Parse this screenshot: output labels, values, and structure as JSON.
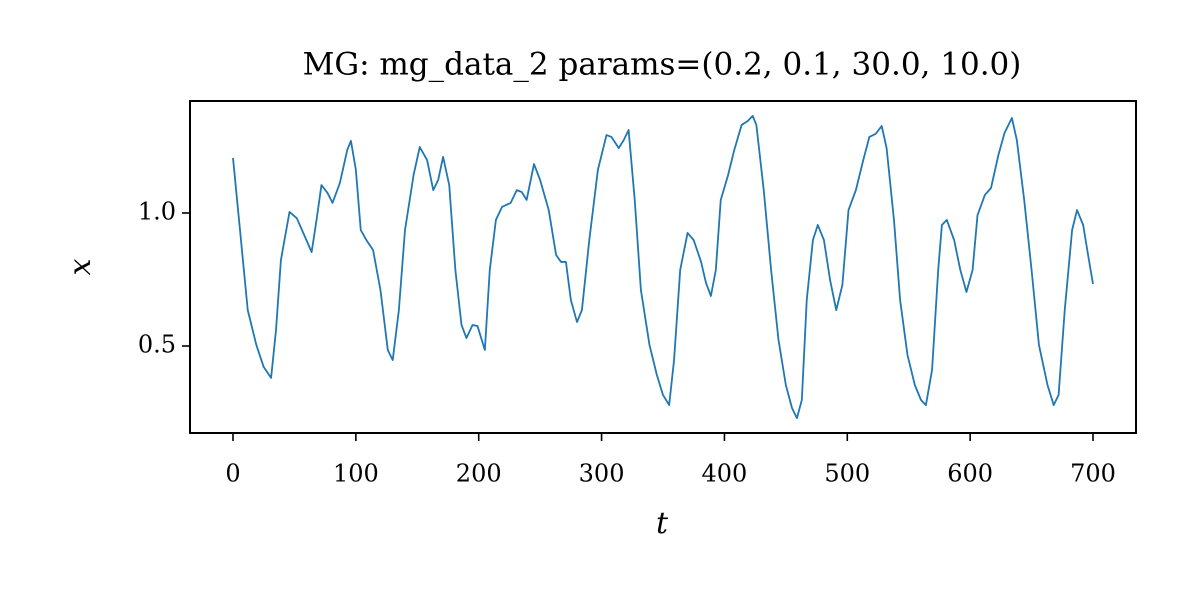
{
  "chart_data": {
    "type": "line",
    "title": "MG: mg_data_2 params=(0.2, 0.1, 30.0, 10.0)",
    "x_label": "t",
    "y_label": "x",
    "color": "#1f77b4",
    "grid": false,
    "x": [
      0,
      5.7,
      12,
      19,
      25,
      31,
      35,
      39,
      46,
      52,
      59,
      64,
      68,
      72,
      77,
      81,
      87,
      93,
      96,
      100,
      104,
      109,
      114,
      120,
      126,
      130,
      135,
      140,
      147,
      152,
      158,
      163,
      167,
      171,
      176,
      181,
      186,
      190,
      195,
      199,
      205,
      209,
      214,
      219,
      226,
      231,
      235,
      239,
      245,
      250,
      257,
      263,
      267,
      271,
      275,
      280,
      284,
      290,
      297,
      304,
      308,
      314,
      318,
      322,
      327,
      332,
      339,
      345,
      350,
      355,
      359,
      364,
      370,
      375,
      381,
      385,
      389,
      393,
      397,
      403,
      408,
      414,
      419,
      423,
      426,
      432,
      438,
      444,
      450,
      455,
      459,
      463,
      467,
      472,
      476,
      481,
      486,
      491,
      496,
      501,
      507,
      513,
      518,
      523,
      528,
      532,
      538,
      543,
      549,
      555,
      560,
      564,
      569,
      574,
      577,
      581,
      587,
      592,
      597,
      602,
      606,
      612,
      617,
      623,
      628,
      634,
      638,
      644,
      650,
      656,
      663,
      668,
      672,
      677,
      683,
      687,
      692,
      696,
      700
    ],
    "values": [
      1.207,
      0.936,
      0.635,
      0.504,
      0.421,
      0.38,
      0.56,
      0.823,
      1.004,
      0.98,
      0.906,
      0.853,
      0.974,
      1.105,
      1.075,
      1.038,
      1.113,
      1.237,
      1.271,
      1.162,
      0.936,
      0.895,
      0.861,
      0.711,
      0.485,
      0.447,
      0.635,
      0.936,
      1.143,
      1.248,
      1.199,
      1.086,
      1.124,
      1.211,
      1.105,
      0.786,
      0.579,
      0.53,
      0.579,
      0.575,
      0.485,
      0.786,
      0.974,
      1.023,
      1.038,
      1.086,
      1.079,
      1.049,
      1.184,
      1.124,
      1.011,
      0.842,
      0.816,
      0.816,
      0.673,
      0.59,
      0.635,
      0.898,
      1.162,
      1.293,
      1.286,
      1.244,
      1.274,
      1.312,
      1.049,
      0.711,
      0.504,
      0.391,
      0.316,
      0.278,
      0.447,
      0.786,
      0.925,
      0.898,
      0.816,
      0.737,
      0.688,
      0.786,
      1.049,
      1.143,
      1.237,
      1.331,
      1.346,
      1.365,
      1.331,
      1.086,
      0.786,
      0.523,
      0.353,
      0.267,
      0.229,
      0.297,
      0.673,
      0.898,
      0.955,
      0.898,
      0.748,
      0.635,
      0.729,
      1.011,
      1.086,
      1.199,
      1.286,
      1.297,
      1.327,
      1.244,
      0.974,
      0.673,
      0.466,
      0.353,
      0.297,
      0.278,
      0.41,
      0.786,
      0.955,
      0.974,
      0.898,
      0.786,
      0.703,
      0.786,
      0.992,
      1.068,
      1.094,
      1.218,
      1.301,
      1.357,
      1.274,
      1.049,
      0.786,
      0.504,
      0.353,
      0.278,
      0.316,
      0.635,
      0.936,
      1.011,
      0.955,
      0.842,
      0.733
    ],
    "xlim": [
      -35,
      735
    ],
    "ylim": [
      0.173,
      1.421
    ],
    "xticks": [
      0,
      100,
      200,
      300,
      400,
      500,
      600,
      700
    ],
    "yticks": [
      0.5,
      {
        "value": 1,
        "label": "1.0"
      }
    ]
  }
}
